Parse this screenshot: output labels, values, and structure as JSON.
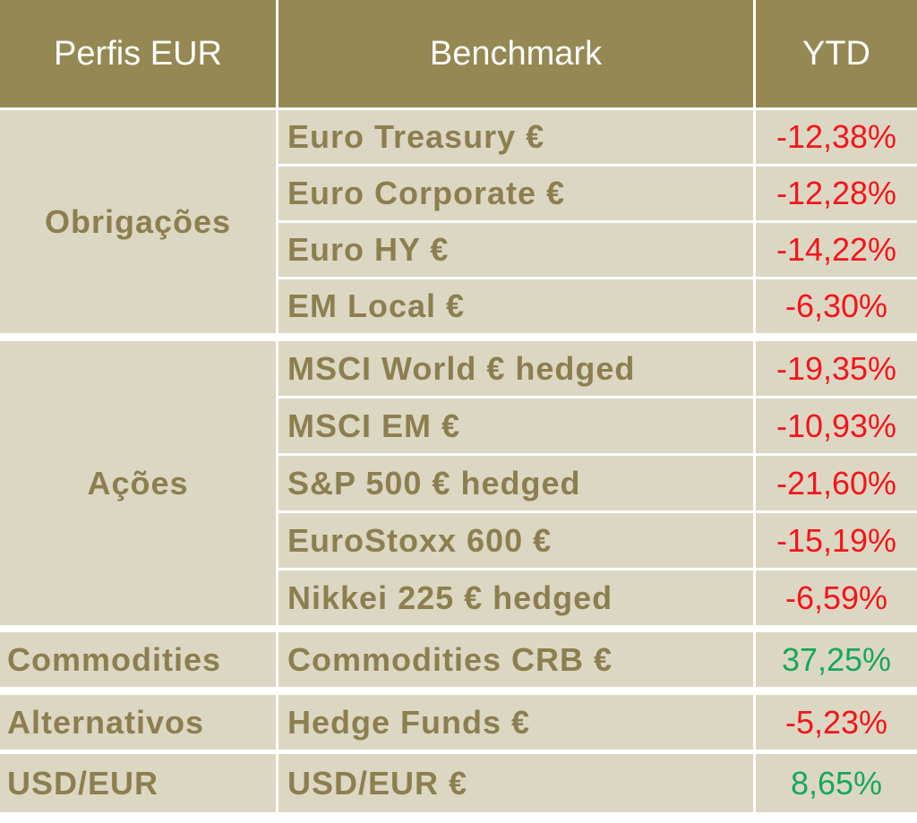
{
  "colors": {
    "header_bg": "#958853",
    "header_text": "#ffffff",
    "body_bg": "#dcd7c3",
    "label_text": "#8c7f4f",
    "negative": "#f4141b",
    "positive": "#16a85a"
  },
  "header": {
    "profile": "Perfis EUR",
    "benchmark": "Benchmark",
    "ytd": "YTD"
  },
  "groups": [
    {
      "label": "Obrigações",
      "rows": [
        {
          "benchmark": "Euro Treasury €",
          "ytd": "-12,38%",
          "sign": "negative"
        },
        {
          "benchmark": "Euro Corporate €",
          "ytd": "-12,28%",
          "sign": "negative"
        },
        {
          "benchmark": "Euro HY €",
          "ytd": "-14,22%",
          "sign": "negative"
        },
        {
          "benchmark": "EM Local €",
          "ytd": "-6,30%",
          "sign": "negative"
        }
      ]
    },
    {
      "label": "Ações",
      "rows": [
        {
          "benchmark": "MSCI World € hedged",
          "ytd": "-19,35%",
          "sign": "negative"
        },
        {
          "benchmark": "MSCI EM €",
          "ytd": "-10,93%",
          "sign": "negative"
        },
        {
          "benchmark": "S&P 500 € hedged",
          "ytd": "-21,60%",
          "sign": "negative"
        },
        {
          "benchmark": "EuroStoxx 600 €",
          "ytd": "-15,19%",
          "sign": "negative"
        },
        {
          "benchmark": "Nikkei 225 € hedged",
          "ytd": "-6,59%",
          "sign": "negative"
        }
      ]
    },
    {
      "label": "Commodities",
      "rows": [
        {
          "benchmark": "Commodities CRB €",
          "ytd": "37,25%",
          "sign": "positive"
        }
      ]
    },
    {
      "label": "Alternativos",
      "rows": [
        {
          "benchmark": "Hedge Funds €",
          "ytd": "-5,23%",
          "sign": "negative"
        }
      ]
    },
    {
      "label": "USD/EUR",
      "rows": [
        {
          "benchmark": "USD/EUR €",
          "ytd": "8,65%",
          "sign": "positive"
        }
      ]
    }
  ]
}
